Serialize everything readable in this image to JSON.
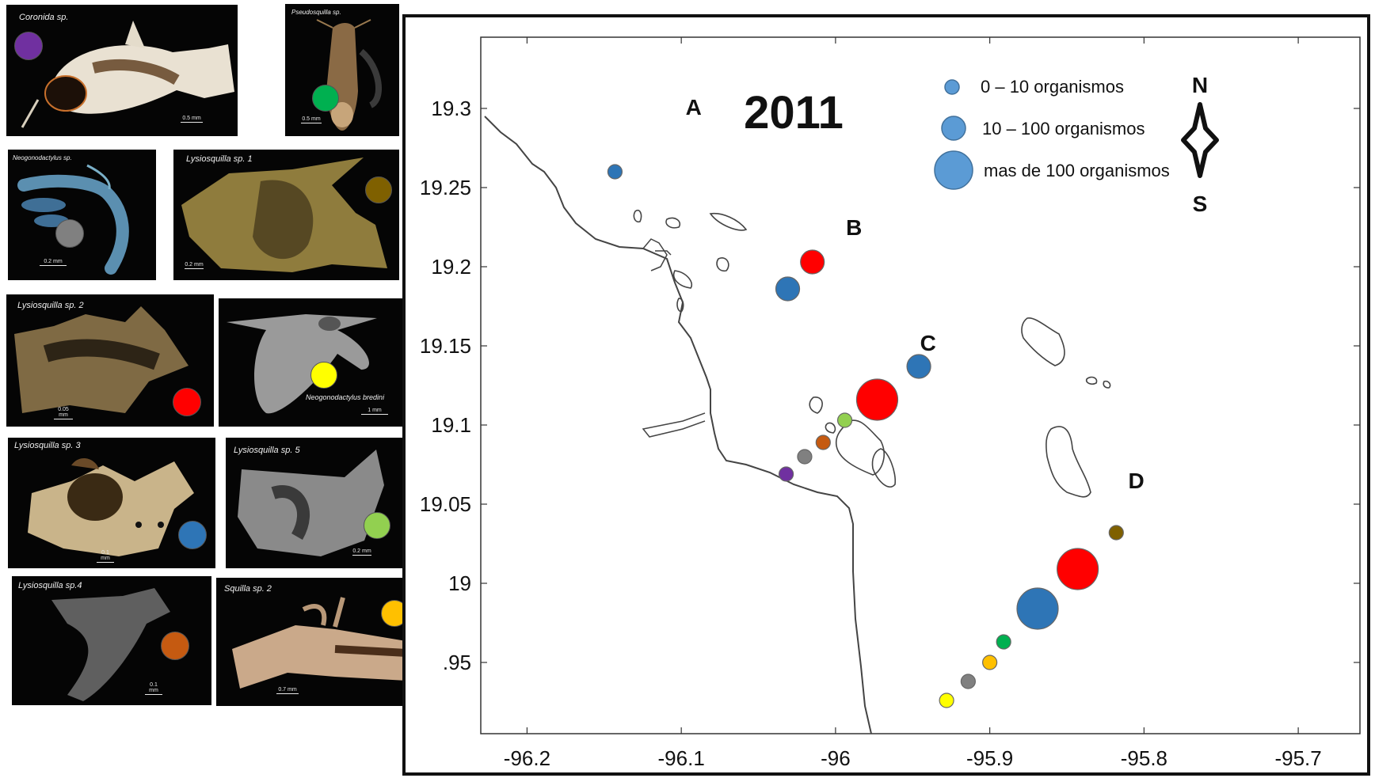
{
  "panels": [
    {
      "label": "Coronida sp.",
      "scale": "0.5 mm",
      "dot_color": "#7030a0"
    },
    {
      "label": "Pseudosquilla sp.",
      "scale": "0.5 mm",
      "dot_color": "#00b050"
    },
    {
      "label": "Neogonodactylus sp.",
      "scale": "0.2 mm",
      "dot_color": "#808080"
    },
    {
      "label": "Lysiosquilla sp. 1",
      "scale": "0.2 mm",
      "dot_color": "#7f6000"
    },
    {
      "label": "Lysiosquilla sp. 2",
      "scale": "0.05 mm",
      "dot_color": "#ff0000"
    },
    {
      "label": "Neogonodactylus bredini",
      "scale": "1 mm",
      "dot_color": "#ffff00"
    },
    {
      "label": "Lysiosquilla sp. 3",
      "scale": "0.1 mm",
      "dot_color": "#2e75b6"
    },
    {
      "label": "Lysiosquilla sp. 5",
      "scale": "0.2 mm",
      "dot_color": "#92d050"
    },
    {
      "label": "Lysiosquilla sp.4",
      "scale": "0.1 mm",
      "dot_color": "#c55a11"
    },
    {
      "label": "Squilla sp. 2",
      "scale": "0.7 mm",
      "dot_color": "#ffc000"
    }
  ],
  "map": {
    "year": "2011",
    "region_labels": [
      {
        "text": "A",
        "lon": -96.092,
        "lat": 19.296
      },
      {
        "text": "B",
        "lon": -95.988,
        "lat": 19.22
      },
      {
        "text": "C",
        "lon": -95.94,
        "lat": 19.147
      },
      {
        "text": "D",
        "lon": -95.805,
        "lat": 19.06
      }
    ],
    "x_ticks": [
      "-96.2",
      "-96.1",
      "-96",
      "-95.9",
      "-95.8",
      "-95.7"
    ],
    "x_tick_values": [
      -96.2,
      -96.1,
      -96.0,
      -95.9,
      -95.8,
      -95.7
    ],
    "y_ticks": [
      "19.3",
      "19.25",
      "19.2",
      "19.15",
      "19.1",
      "19.05",
      "19",
      ".95"
    ],
    "y_tick_values": [
      19.3,
      19.25,
      19.2,
      19.15,
      19.1,
      19.05,
      19.0,
      18.95
    ],
    "lon_range": [
      -96.23,
      -95.66
    ],
    "lat_range": [
      18.905,
      19.345
    ],
    "legend": [
      {
        "label": "0 – 10 organismos",
        "size": "small"
      },
      {
        "label": "10 – 100 organismos",
        "size": "medium"
      },
      {
        "label": "mas de 100 organismos",
        "size": "large"
      }
    ],
    "legend_color": "#5b9bd5",
    "compass": {
      "north": "N",
      "south": "S"
    }
  },
  "chart_data": {
    "type": "scatter",
    "title": "2011",
    "xlim": [
      -96.23,
      -95.66
    ],
    "ylim": [
      18.905,
      19.345
    ],
    "points": [
      {
        "lon": -96.143,
        "lat": 19.26,
        "color": "#2e75b6",
        "size": "small"
      },
      {
        "lon": -96.015,
        "lat": 19.203,
        "color": "#ff0000",
        "size": "medium"
      },
      {
        "lon": -96.031,
        "lat": 19.186,
        "color": "#2e75b6",
        "size": "medium"
      },
      {
        "lon": -95.946,
        "lat": 19.137,
        "color": "#2e75b6",
        "size": "medium"
      },
      {
        "lon": -95.973,
        "lat": 19.116,
        "color": "#ff0000",
        "size": "large"
      },
      {
        "lon": -95.994,
        "lat": 19.103,
        "color": "#92d050",
        "size": "small"
      },
      {
        "lon": -96.008,
        "lat": 19.089,
        "color": "#c55a11",
        "size": "small"
      },
      {
        "lon": -96.02,
        "lat": 19.08,
        "color": "#808080",
        "size": "small"
      },
      {
        "lon": -96.032,
        "lat": 19.069,
        "color": "#7030a0",
        "size": "small"
      },
      {
        "lon": -95.818,
        "lat": 19.032,
        "color": "#7f6000",
        "size": "small"
      },
      {
        "lon": -95.843,
        "lat": 19.009,
        "color": "#ff0000",
        "size": "large"
      },
      {
        "lon": -95.869,
        "lat": 18.984,
        "color": "#2e75b6",
        "size": "large"
      },
      {
        "lon": -95.891,
        "lat": 18.963,
        "color": "#00b050",
        "size": "small"
      },
      {
        "lon": -95.9,
        "lat": 18.95,
        "color": "#ffc000",
        "size": "small"
      },
      {
        "lon": -95.914,
        "lat": 18.938,
        "color": "#808080",
        "size": "small"
      },
      {
        "lon": -95.928,
        "lat": 18.926,
        "color": "#ffff00",
        "size": "small"
      }
    ]
  }
}
